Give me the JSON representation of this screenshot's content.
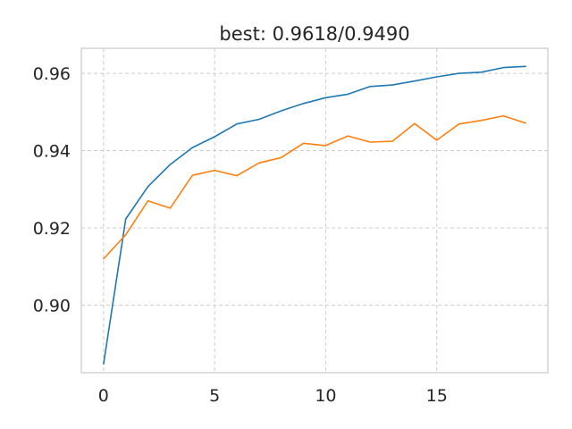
{
  "chart_data": {
    "type": "line",
    "title": "best: 0.9618/0.9490",
    "xlabel": "",
    "ylabel": "",
    "xlim": [
      -1,
      20
    ],
    "ylim": [
      0.8825,
      0.9665
    ],
    "grid": true,
    "x": [
      0,
      1,
      2,
      3,
      4,
      5,
      6,
      7,
      8,
      9,
      10,
      11,
      12,
      13,
      14,
      15,
      16,
      17,
      18,
      19
    ],
    "x_ticks": [
      0,
      5,
      10,
      15
    ],
    "x_tick_labels": [
      "0",
      "5",
      "10",
      "15"
    ],
    "y_ticks": [
      0.9,
      0.92,
      0.94,
      0.96
    ],
    "y_tick_labels": [
      "0.90",
      "0.92",
      "0.94",
      "0.96"
    ],
    "series": [
      {
        "color": "#1f77b4",
        "values": [
          0.8848,
          0.9223,
          0.9307,
          0.9364,
          0.9408,
          0.9436,
          0.9469,
          0.9481,
          0.9503,
          0.9522,
          0.9537,
          0.9546,
          0.9566,
          0.957,
          0.958,
          0.9591,
          0.96,
          0.9603,
          0.9615,
          0.9618
        ]
      },
      {
        "color": "#ff7f0e",
        "values": [
          0.912,
          0.9182,
          0.927,
          0.9251,
          0.9336,
          0.9349,
          0.9335,
          0.9368,
          0.9382,
          0.9419,
          0.9413,
          0.9438,
          0.9422,
          0.9424,
          0.947,
          0.9427,
          0.9469,
          0.9478,
          0.949,
          0.9471
        ]
      }
    ]
  }
}
